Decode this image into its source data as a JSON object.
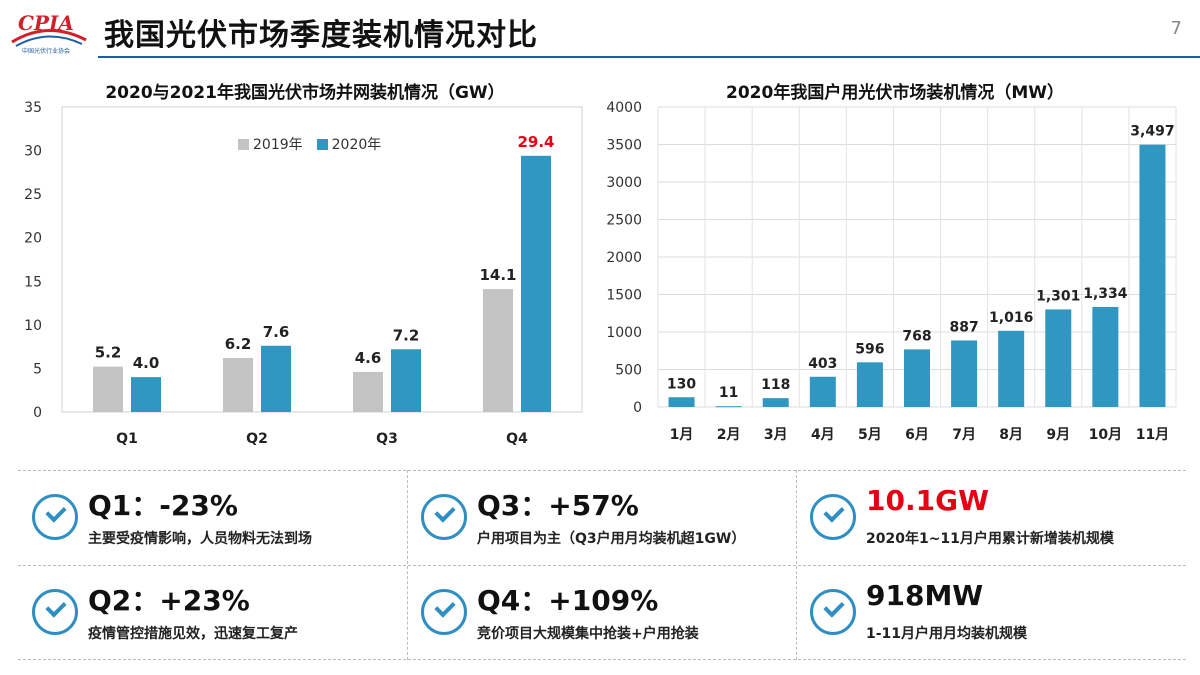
{
  "header": {
    "logo_text": "CPIA",
    "logo_subtext": "中国光伏行业协会",
    "title": "我国光伏市场季度装机情况对比",
    "page_number": "7"
  },
  "colors": {
    "accent": "#1f5fa8",
    "series_gray": "#c3c3c3",
    "series_blue": "#3096c2",
    "highlight_red": "#e60012"
  },
  "chart_data": [
    {
      "type": "bar",
      "title": "2020与2021年我国光伏市场并网装机情况（GW）",
      "categories": [
        "Q1",
        "Q2",
        "Q3",
        "Q4"
      ],
      "series": [
        {
          "name": "2019年",
          "values": [
            5.2,
            6.2,
            4.6,
            14.1
          ],
          "labels": [
            "5.2",
            "6.2",
            "4.6",
            "14.1"
          ]
        },
        {
          "name": "2020年",
          "values": [
            4.0,
            7.6,
            7.2,
            29.4
          ],
          "labels": [
            "4.0",
            "7.6",
            "7.2",
            "29.4"
          ]
        }
      ],
      "ylim": [
        0,
        35
      ],
      "yticks": [
        0,
        5,
        10,
        15,
        20,
        25,
        30,
        35
      ],
      "grid": true,
      "legend": "top-center",
      "highlight": {
        "series": 1,
        "index": 3
      }
    },
    {
      "type": "bar",
      "title": "2020年我国户用光伏市场装机情况（MW）",
      "categories": [
        "1月",
        "2月",
        "3月",
        "4月",
        "5月",
        "6月",
        "7月",
        "8月",
        "9月",
        "10月",
        "11月"
      ],
      "values": [
        130,
        11,
        118,
        403,
        596,
        768,
        887,
        1016,
        1301,
        1334,
        3497
      ],
      "labels": [
        "130",
        "11",
        "118",
        "403",
        "596",
        "768",
        "887",
        "1,016",
        "1,301",
        "1,334",
        "3,497"
      ],
      "ylim": [
        0,
        4000
      ],
      "yticks": [
        0,
        500,
        1000,
        1500,
        2000,
        2500,
        3000,
        3500,
        4000
      ],
      "grid": true
    }
  ],
  "cards": [
    {
      "title": "Q1：-23%",
      "subtitle": "主要受疫情影响，人员物料无法到场"
    },
    {
      "title": "Q3：+57%",
      "subtitle": "户用项目为主（Q3户用月均装机超1GW）"
    },
    {
      "title": "10.1GW",
      "subtitle": "2020年1~11月户用累计新增装机规模",
      "highlight": true
    },
    {
      "title": "Q2：+23%",
      "subtitle": "疫情管控措施见效，迅速复工复产"
    },
    {
      "title": "Q4：+109%",
      "subtitle": "竞价项目大规模集中抢装+户用抢装"
    },
    {
      "title": "918MW",
      "subtitle": "1-11月户用月均装机规模"
    }
  ]
}
